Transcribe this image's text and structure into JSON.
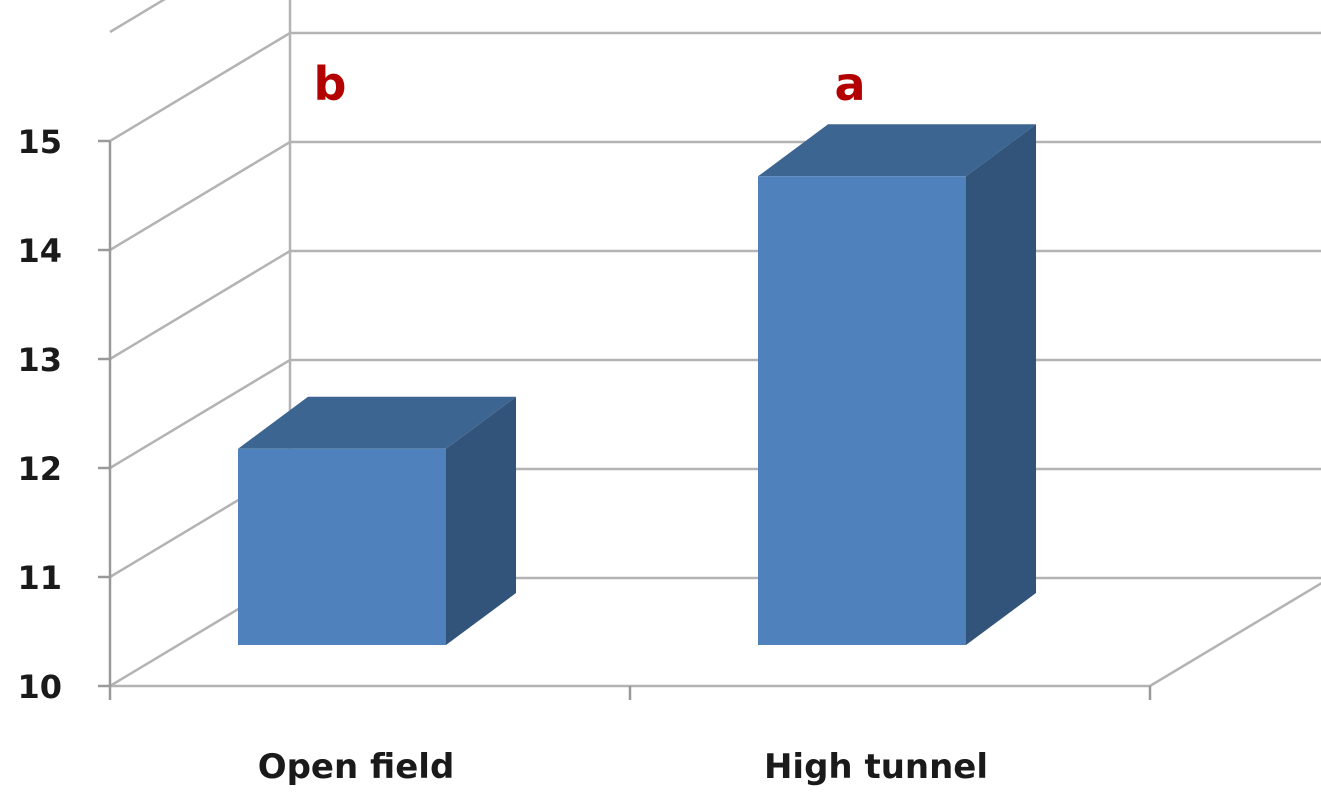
{
  "chart_data": {
    "type": "bar",
    "style": "3d-column",
    "title": "",
    "xlabel": "",
    "ylabel": "",
    "categories": [
      "Open field",
      "High tunnel"
    ],
    "values": [
      11.8,
      14.3
    ],
    "significance_letters": [
      "b",
      "a"
    ],
    "ylim": [
      10,
      16
    ],
    "yticks": [
      "10",
      "11",
      "12",
      "13",
      "14",
      "15"
    ],
    "grid": true,
    "legend": "none",
    "colors": {
      "bar_front": "#4f81bd",
      "bar_top": "#3d6591",
      "bar_side": "#33547a",
      "gridline": "#b3b3b3",
      "axis": "#999999",
      "letters": "#b30000"
    }
  }
}
